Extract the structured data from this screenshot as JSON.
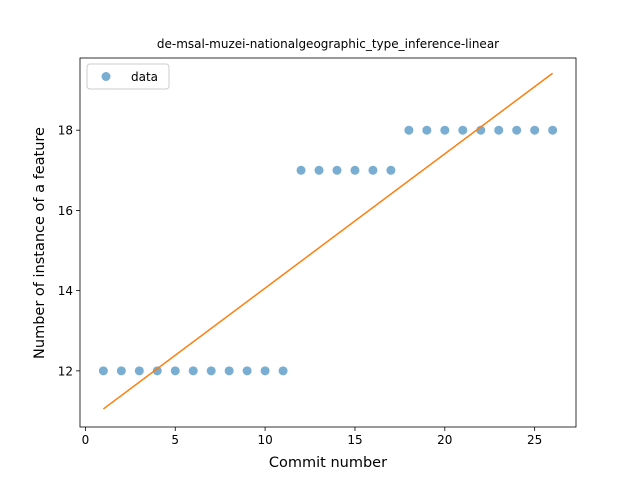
{
  "chart_data": {
    "type": "scatter",
    "title": "de-msal-muzei-nationalgeographic_type_inference-linear",
    "xlabel": "Commit number",
    "ylabel": "Number of instance of a feature",
    "xlim": [
      -0.3,
      27.3
    ],
    "ylim": [
      10.6,
      19.8
    ],
    "xticks": [
      0,
      5,
      10,
      15,
      20,
      25
    ],
    "yticks": [
      12,
      14,
      16,
      18
    ],
    "grid": false,
    "legend_position": "upper left",
    "series": [
      {
        "name": "data",
        "kind": "scatter",
        "color": "#1f77b4",
        "x": [
          1,
          2,
          3,
          4,
          5,
          6,
          7,
          8,
          9,
          10,
          11,
          12,
          13,
          14,
          15,
          16,
          17,
          18,
          19,
          20,
          21,
          22,
          23,
          24,
          25,
          26
        ],
        "y": [
          12,
          12,
          12,
          12,
          12,
          12,
          12,
          12,
          12,
          12,
          12,
          17,
          17,
          17,
          17,
          17,
          17,
          18,
          18,
          18,
          18,
          18,
          18,
          18,
          18,
          18
        ]
      },
      {
        "kind": "line",
        "color": "#ff7f0e",
        "x": [
          1,
          26
        ],
        "y": [
          11.05,
          19.42
        ]
      }
    ]
  }
}
